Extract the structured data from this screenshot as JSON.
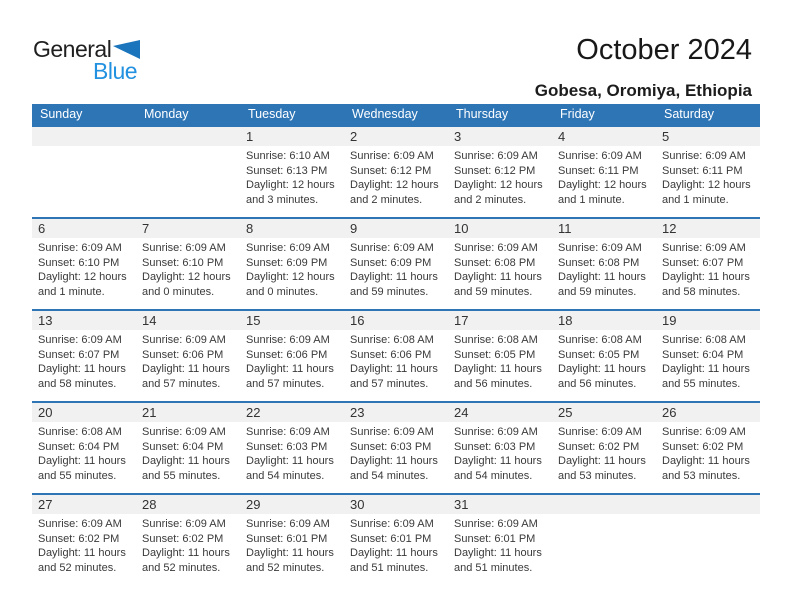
{
  "logo": {
    "part1": "General",
    "part2": "Blue"
  },
  "title": "October 2024",
  "subtitle": "Gobesa, Oromiya, Ethiopia",
  "colors": {
    "header_blue": "#2E75B6",
    "week_divider_blue": "#2E75B6",
    "day_band_gray": "#F1F1F1",
    "logo_text_blue": "#2191E0",
    "logo_triangle_blue": "#1B75BC"
  },
  "weekdays": [
    "Sunday",
    "Monday",
    "Tuesday",
    "Wednesday",
    "Thursday",
    "Friday",
    "Saturday"
  ],
  "weeks": [
    [
      {
        "day": "",
        "lines": []
      },
      {
        "day": "",
        "lines": []
      },
      {
        "day": "1",
        "lines": [
          "Sunrise: 6:10 AM",
          "Sunset: 6:13 PM",
          "Daylight: 12 hours",
          "and 3 minutes."
        ]
      },
      {
        "day": "2",
        "lines": [
          "Sunrise: 6:09 AM",
          "Sunset: 6:12 PM",
          "Daylight: 12 hours",
          "and 2 minutes."
        ]
      },
      {
        "day": "3",
        "lines": [
          "Sunrise: 6:09 AM",
          "Sunset: 6:12 PM",
          "Daylight: 12 hours",
          "and 2 minutes."
        ]
      },
      {
        "day": "4",
        "lines": [
          "Sunrise: 6:09 AM",
          "Sunset: 6:11 PM",
          "Daylight: 12 hours",
          "and 1 minute."
        ]
      },
      {
        "day": "5",
        "lines": [
          "Sunrise: 6:09 AM",
          "Sunset: 6:11 PM",
          "Daylight: 12 hours",
          "and 1 minute."
        ]
      }
    ],
    [
      {
        "day": "6",
        "lines": [
          "Sunrise: 6:09 AM",
          "Sunset: 6:10 PM",
          "Daylight: 12 hours",
          "and 1 minute."
        ]
      },
      {
        "day": "7",
        "lines": [
          "Sunrise: 6:09 AM",
          "Sunset: 6:10 PM",
          "Daylight: 12 hours",
          "and 0 minutes."
        ]
      },
      {
        "day": "8",
        "lines": [
          "Sunrise: 6:09 AM",
          "Sunset: 6:09 PM",
          "Daylight: 12 hours",
          "and 0 minutes."
        ]
      },
      {
        "day": "9",
        "lines": [
          "Sunrise: 6:09 AM",
          "Sunset: 6:09 PM",
          "Daylight: 11 hours",
          "and 59 minutes."
        ]
      },
      {
        "day": "10",
        "lines": [
          "Sunrise: 6:09 AM",
          "Sunset: 6:08 PM",
          "Daylight: 11 hours",
          "and 59 minutes."
        ]
      },
      {
        "day": "11",
        "lines": [
          "Sunrise: 6:09 AM",
          "Sunset: 6:08 PM",
          "Daylight: 11 hours",
          "and 59 minutes."
        ]
      },
      {
        "day": "12",
        "lines": [
          "Sunrise: 6:09 AM",
          "Sunset: 6:07 PM",
          "Daylight: 11 hours",
          "and 58 minutes."
        ]
      }
    ],
    [
      {
        "day": "13",
        "lines": [
          "Sunrise: 6:09 AM",
          "Sunset: 6:07 PM",
          "Daylight: 11 hours",
          "and 58 minutes."
        ]
      },
      {
        "day": "14",
        "lines": [
          "Sunrise: 6:09 AM",
          "Sunset: 6:06 PM",
          "Daylight: 11 hours",
          "and 57 minutes."
        ]
      },
      {
        "day": "15",
        "lines": [
          "Sunrise: 6:09 AM",
          "Sunset: 6:06 PM",
          "Daylight: 11 hours",
          "and 57 minutes."
        ]
      },
      {
        "day": "16",
        "lines": [
          "Sunrise: 6:08 AM",
          "Sunset: 6:06 PM",
          "Daylight: 11 hours",
          "and 57 minutes."
        ]
      },
      {
        "day": "17",
        "lines": [
          "Sunrise: 6:08 AM",
          "Sunset: 6:05 PM",
          "Daylight: 11 hours",
          "and 56 minutes."
        ]
      },
      {
        "day": "18",
        "lines": [
          "Sunrise: 6:08 AM",
          "Sunset: 6:05 PM",
          "Daylight: 11 hours",
          "and 56 minutes."
        ]
      },
      {
        "day": "19",
        "lines": [
          "Sunrise: 6:08 AM",
          "Sunset: 6:04 PM",
          "Daylight: 11 hours",
          "and 55 minutes."
        ]
      }
    ],
    [
      {
        "day": "20",
        "lines": [
          "Sunrise: 6:08 AM",
          "Sunset: 6:04 PM",
          "Daylight: 11 hours",
          "and 55 minutes."
        ]
      },
      {
        "day": "21",
        "lines": [
          "Sunrise: 6:09 AM",
          "Sunset: 6:04 PM",
          "Daylight: 11 hours",
          "and 55 minutes."
        ]
      },
      {
        "day": "22",
        "lines": [
          "Sunrise: 6:09 AM",
          "Sunset: 6:03 PM",
          "Daylight: 11 hours",
          "and 54 minutes."
        ]
      },
      {
        "day": "23",
        "lines": [
          "Sunrise: 6:09 AM",
          "Sunset: 6:03 PM",
          "Daylight: 11 hours",
          "and 54 minutes."
        ]
      },
      {
        "day": "24",
        "lines": [
          "Sunrise: 6:09 AM",
          "Sunset: 6:03 PM",
          "Daylight: 11 hours",
          "and 54 minutes."
        ]
      },
      {
        "day": "25",
        "lines": [
          "Sunrise: 6:09 AM",
          "Sunset: 6:02 PM",
          "Daylight: 11 hours",
          "and 53 minutes."
        ]
      },
      {
        "day": "26",
        "lines": [
          "Sunrise: 6:09 AM",
          "Sunset: 6:02 PM",
          "Daylight: 11 hours",
          "and 53 minutes."
        ]
      }
    ],
    [
      {
        "day": "27",
        "lines": [
          "Sunrise: 6:09 AM",
          "Sunset: 6:02 PM",
          "Daylight: 11 hours",
          "and 52 minutes."
        ]
      },
      {
        "day": "28",
        "lines": [
          "Sunrise: 6:09 AM",
          "Sunset: 6:02 PM",
          "Daylight: 11 hours",
          "and 52 minutes."
        ]
      },
      {
        "day": "29",
        "lines": [
          "Sunrise: 6:09 AM",
          "Sunset: 6:01 PM",
          "Daylight: 11 hours",
          "and 52 minutes."
        ]
      },
      {
        "day": "30",
        "lines": [
          "Sunrise: 6:09 AM",
          "Sunset: 6:01 PM",
          "Daylight: 11 hours",
          "and 51 minutes."
        ]
      },
      {
        "day": "31",
        "lines": [
          "Sunrise: 6:09 AM",
          "Sunset: 6:01 PM",
          "Daylight: 11 hours",
          "and 51 minutes."
        ]
      },
      {
        "day": "",
        "lines": []
      },
      {
        "day": "",
        "lines": []
      }
    ]
  ]
}
